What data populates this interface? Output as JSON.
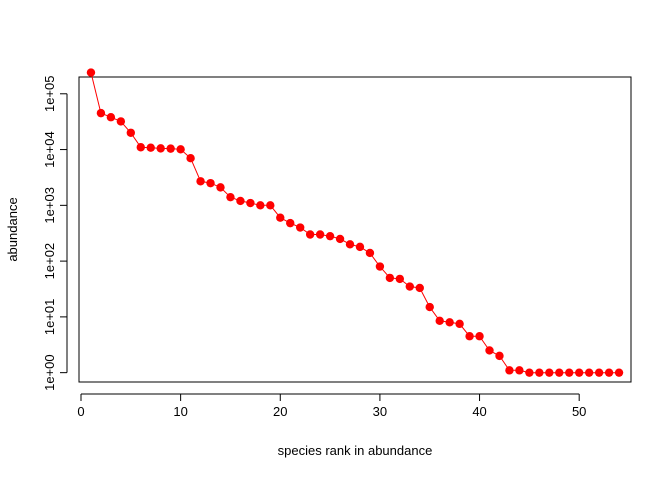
{
  "chart_data": {
    "type": "line",
    "xlabel": "species rank in abundance",
    "ylabel": "abundance",
    "y_scale": "log10",
    "xlim": [
      -0.2,
      55.2
    ],
    "ylim": [
      0.68,
      200000
    ],
    "x_ticks": [
      0,
      10,
      20,
      30,
      40,
      50
    ],
    "x_tick_labels": [
      "0",
      "10",
      "20",
      "30",
      "40",
      "50"
    ],
    "y_ticks": [
      1,
      10,
      100,
      1000,
      10000,
      100000
    ],
    "y_tick_labels": [
      "1e+00",
      "1e+01",
      "1e+02",
      "1e+03",
      "1e+04",
      "1e+05"
    ],
    "grid": false,
    "line_color": "#ff0000",
    "marker_color": "#ff0000",
    "x": [
      1,
      2,
      3,
      4,
      5,
      6,
      7,
      8,
      9,
      10,
      11,
      12,
      13,
      14,
      15,
      16,
      17,
      18,
      19,
      20,
      21,
      22,
      23,
      24,
      25,
      26,
      27,
      28,
      29,
      30,
      31,
      32,
      33,
      34,
      35,
      36,
      37,
      38,
      39,
      40,
      41,
      42,
      43,
      44,
      45,
      46,
      47,
      48,
      49,
      50,
      51,
      52,
      53,
      54
    ],
    "y": [
      240000,
      45000,
      38000,
      32000,
      20000,
      11000,
      10800,
      10500,
      10400,
      10100,
      7000,
      2700,
      2500,
      2100,
      1400,
      1200,
      1100,
      1000,
      1000,
      600,
      480,
      400,
      300,
      300,
      280,
      250,
      200,
      180,
      140,
      80,
      50,
      48,
      35,
      33,
      15,
      8.5,
      8,
      7.5,
      4.5,
      4.5,
      2.5,
      2,
      1.1,
      1.1,
      1,
      1,
      1,
      1,
      1,
      1,
      1,
      1,
      1,
      1
    ]
  }
}
